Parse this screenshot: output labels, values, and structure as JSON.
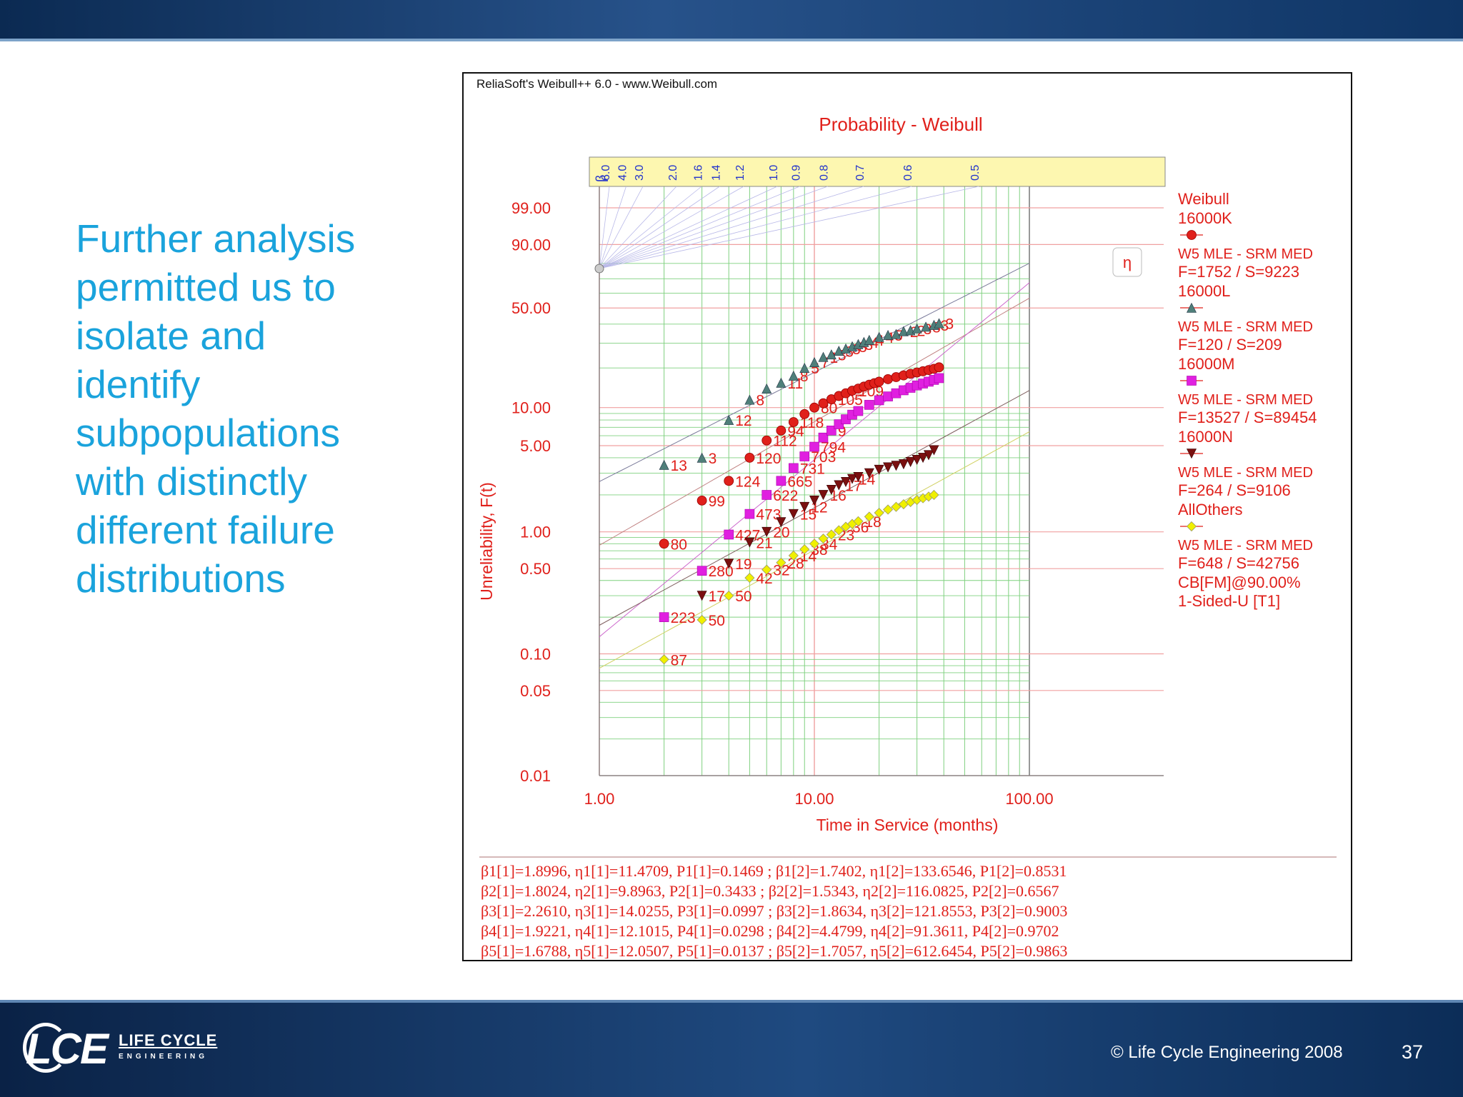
{
  "slide": {
    "text_lines": [
      "Further analysis",
      "permitted us to",
      "isolate and",
      "identify",
      "subpopulations",
      "with distinctly",
      "different failure",
      "distributions"
    ],
    "copyright": "© Life Cycle Engineering 2008",
    "page_number": "37",
    "logo": {
      "mark": "LCE",
      "line1": "LIFE CYCLE",
      "line2": "ENGINEERING"
    }
  },
  "colors": {
    "accent_text": "#1aa3dc",
    "band": "#163e70",
    "chart_red": "#e0201b",
    "grid_green": "#7fd07f",
    "grid_red": "#f0a0a0"
  },
  "chart_data": {
    "type": "scatter",
    "software_caption": "ReliaSoft's Weibull++ 6.0 - www.Weibull.com",
    "title": "Probability - Weibull",
    "xlabel": "Time in Service (months)",
    "ylabel": "Unreliability, F(t)",
    "x_scale": "log",
    "y_scale": "weibull",
    "xlim": [
      1,
      100
    ],
    "ylim": [
      0.01,
      99.9
    ],
    "x_ticks": [
      "1.00",
      "10.00",
      "100.00"
    ],
    "y_ticks": [
      {
        "value": 99.0,
        "label": "99.00"
      },
      {
        "value": 90.0,
        "label": "90.00"
      },
      {
        "value": 50.0,
        "label": "50.00"
      },
      {
        "value": 10.0,
        "label": "10.00"
      },
      {
        "value": 5.0,
        "label": "5.00"
      },
      {
        "value": 1.0,
        "label": "1.00"
      },
      {
        "value": 0.5,
        "label": "0.50"
      },
      {
        "value": 0.1,
        "label": "0.10"
      },
      {
        "value": 0.05,
        "label": "0.05"
      },
      {
        "value": 0.01,
        "label": "0.01"
      }
    ],
    "beta_scale": {
      "symbol": "β",
      "ticks": [
        "6.0",
        "4.0",
        "3.0",
        "2.0",
        "1.6",
        "1.4",
        "1.2",
        "1.0",
        "0.9",
        "0.8",
        "0.7",
        "0.6",
        "0.5"
      ]
    },
    "eta_marker": "η",
    "grid": true,
    "legend_position": "right",
    "legend": [
      {
        "header": "Weibull"
      },
      {
        "name": "16000K",
        "marker": "circle",
        "color": "#e0201b",
        "method": "W5 MLE - SRM MED",
        "counts": "F=1752 / S=9223"
      },
      {
        "name": "16000L",
        "marker": "triangle-up",
        "color": "#4f7f7a",
        "method": "W5 MLE - SRM MED",
        "counts": "F=120 / S=209"
      },
      {
        "name": "16000M",
        "marker": "square",
        "color": "#e020e0",
        "method": "W5 MLE - SRM MED",
        "counts": "F=13527 / S=89454"
      },
      {
        "name": "16000N",
        "marker": "triangle-down",
        "color": "#7a1010",
        "method": "W5 MLE - SRM MED",
        "counts": "F=264 / S=9106"
      },
      {
        "name": "AllOthers",
        "marker": "diamond",
        "color": "#f0f000",
        "method": "W5 MLE - SRM MED",
        "counts": "F=648 / S=42756"
      },
      {
        "footer": [
          "CB[FM]@90.00%",
          "1-Sided-U [T1]"
        ]
      }
    ],
    "series": [
      {
        "name": "16000L",
        "marker": "triangle-up",
        "color": "#4f7f7a",
        "points": [
          [
            2,
            3.5,
            "13"
          ],
          [
            3,
            4.0,
            "3"
          ],
          [
            4,
            8.0,
            "12"
          ],
          [
            5,
            11.5,
            "8"
          ],
          [
            6,
            14,
            ""
          ],
          [
            7,
            15.5,
            "11"
          ],
          [
            8,
            17.5,
            "8"
          ],
          [
            9,
            20,
            "5"
          ],
          [
            10,
            22,
            "7"
          ],
          [
            11,
            24,
            "1"
          ],
          [
            12,
            25,
            "3"
          ],
          [
            13,
            26.5,
            "3"
          ],
          [
            14,
            27.5,
            "3"
          ],
          [
            15,
            28.5,
            "3"
          ],
          [
            16,
            29.5,
            "3"
          ],
          [
            17,
            30.5,
            "4"
          ],
          [
            18,
            31.5,
            "4"
          ],
          [
            20,
            33,
            "4"
          ],
          [
            22,
            34,
            "5"
          ],
          [
            24,
            34.5,
            ""
          ],
          [
            26,
            36,
            "2"
          ],
          [
            28,
            36.5,
            "2"
          ],
          [
            30,
            37.5,
            "3"
          ],
          [
            33,
            38.5,
            "8"
          ],
          [
            36,
            39.5,
            "3"
          ],
          [
            38,
            40.5,
            "3"
          ]
        ]
      },
      {
        "name": "16000K",
        "marker": "circle",
        "color": "#e0201b",
        "points": [
          [
            2,
            0.8,
            "80"
          ],
          [
            3,
            1.8,
            "99"
          ],
          [
            4,
            2.6,
            "124"
          ],
          [
            5,
            4.0,
            "120"
          ],
          [
            6,
            5.5,
            "112"
          ],
          [
            7,
            6.6,
            "94"
          ],
          [
            8,
            7.7,
            "118"
          ],
          [
            9,
            8.9,
            ""
          ],
          [
            10,
            10.0,
            "80"
          ],
          [
            11,
            10.8,
            ""
          ],
          [
            12,
            11.6,
            "105"
          ],
          [
            13,
            12.3,
            ""
          ],
          [
            14,
            12.9,
            ""
          ],
          [
            15,
            13.5,
            "109"
          ],
          [
            16,
            14.0,
            ""
          ],
          [
            17,
            14.5,
            ""
          ],
          [
            18,
            15.0,
            ""
          ],
          [
            19,
            15.4,
            ""
          ],
          [
            20,
            15.8,
            ""
          ],
          [
            22,
            16.5,
            ""
          ],
          [
            24,
            17.1,
            ""
          ],
          [
            26,
            17.6,
            ""
          ],
          [
            28,
            18.1,
            ""
          ],
          [
            30,
            18.5,
            ""
          ],
          [
            32,
            18.9,
            ""
          ],
          [
            34,
            19.3,
            ""
          ],
          [
            36,
            19.7,
            ""
          ],
          [
            38,
            20.2,
            ""
          ]
        ]
      },
      {
        "name": "16000M",
        "marker": "square",
        "color": "#e020e0",
        "points": [
          [
            2,
            0.2,
            "223"
          ],
          [
            3,
            0.48,
            "280"
          ],
          [
            4,
            0.95,
            "427"
          ],
          [
            5,
            1.4,
            "473"
          ],
          [
            6,
            2.0,
            "622"
          ],
          [
            7,
            2.6,
            "665"
          ],
          [
            8,
            3.3,
            "731"
          ],
          [
            9,
            4.1,
            "703"
          ],
          [
            10,
            4.9,
            "794"
          ],
          [
            11,
            5.8,
            ""
          ],
          [
            12,
            6.6,
            "9"
          ],
          [
            13,
            7.4,
            ""
          ],
          [
            14,
            8.1,
            ""
          ],
          [
            15,
            8.8,
            ""
          ],
          [
            16,
            9.4,
            ""
          ],
          [
            18,
            10.5,
            ""
          ],
          [
            20,
            11.4,
            ""
          ],
          [
            22,
            12.2,
            ""
          ],
          [
            24,
            12.9,
            ""
          ],
          [
            26,
            13.6,
            ""
          ],
          [
            28,
            14.2,
            ""
          ],
          [
            30,
            14.8,
            ""
          ],
          [
            32,
            15.3,
            ""
          ],
          [
            34,
            15.8,
            ""
          ],
          [
            36,
            16.3,
            ""
          ],
          [
            38,
            16.8,
            ""
          ]
        ]
      },
      {
        "name": "16000N",
        "marker": "triangle-down",
        "color": "#7a1010",
        "points": [
          [
            3,
            0.3,
            "17"
          ],
          [
            4,
            0.55,
            "19"
          ],
          [
            5,
            0.82,
            "21"
          ],
          [
            6,
            1.0,
            "20"
          ],
          [
            7,
            1.2,
            ""
          ],
          [
            8,
            1.4,
            "15"
          ],
          [
            9,
            1.6,
            "12"
          ],
          [
            10,
            1.8,
            ""
          ],
          [
            11,
            2.0,
            "16"
          ],
          [
            12,
            2.2,
            ""
          ],
          [
            13,
            2.4,
            "17"
          ],
          [
            14,
            2.55,
            ""
          ],
          [
            15,
            2.7,
            "14"
          ],
          [
            16,
            2.8,
            ""
          ],
          [
            18,
            3.0,
            ""
          ],
          [
            20,
            3.2,
            ""
          ],
          [
            22,
            3.35,
            ""
          ],
          [
            24,
            3.45,
            ""
          ],
          [
            26,
            3.55,
            ""
          ],
          [
            28,
            3.7,
            ""
          ],
          [
            30,
            3.85,
            ""
          ],
          [
            32,
            4.0,
            ""
          ],
          [
            34,
            4.2,
            ""
          ],
          [
            36,
            4.6,
            ""
          ]
        ]
      },
      {
        "name": "AllOthers",
        "marker": "diamond",
        "color": "#f0f000",
        "points": [
          [
            2,
            0.09,
            "87"
          ],
          [
            3,
            0.19,
            "50"
          ],
          [
            4,
            0.3,
            "50"
          ],
          [
            5,
            0.42,
            "42"
          ],
          [
            6,
            0.49,
            "32"
          ],
          [
            7,
            0.56,
            "28"
          ],
          [
            8,
            0.64,
            "14"
          ],
          [
            9,
            0.72,
            "38"
          ],
          [
            10,
            0.8,
            "34"
          ],
          [
            11,
            0.88,
            ""
          ],
          [
            12,
            0.95,
            "23"
          ],
          [
            13,
            1.03,
            ""
          ],
          [
            14,
            1.1,
            "36"
          ],
          [
            15,
            1.16,
            ""
          ],
          [
            16,
            1.22,
            "18"
          ],
          [
            18,
            1.33,
            ""
          ],
          [
            20,
            1.43,
            ""
          ],
          [
            22,
            1.52,
            ""
          ],
          [
            24,
            1.6,
            ""
          ],
          [
            26,
            1.68,
            ""
          ],
          [
            28,
            1.75,
            ""
          ],
          [
            30,
            1.82,
            ""
          ],
          [
            32,
            1.88,
            ""
          ],
          [
            34,
            1.94,
            ""
          ],
          [
            36,
            2.0,
            ""
          ]
        ]
      }
    ],
    "parameters": [
      "β1[1]=1.8996, η1[1]=11.4709, P1[1]=0.1469 ; β1[2]=1.7402, η1[2]=133.6546, P1[2]=0.8531",
      "β2[1]=1.8024, η2[1]=9.8963, P2[1]=0.3433 ; β2[2]=1.5343, η2[2]=116.0825, P2[2]=0.6567",
      "β3[1]=2.2610, η3[1]=14.0255, P3[1]=0.0997 ; β3[2]=1.8634, η3[2]=121.8553, P3[2]=0.9003",
      "β4[1]=1.9221, η4[1]=12.1015, P4[1]=0.0298 ; β4[2]=4.4799, η4[2]=91.3611, P4[2]=0.9702",
      "β5[1]=1.6788, η5[1]=12.0507, P5[1]=0.0137 ; β5[2]=1.7057, η5[2]=612.6454, P5[2]=0.9863"
    ]
  }
}
